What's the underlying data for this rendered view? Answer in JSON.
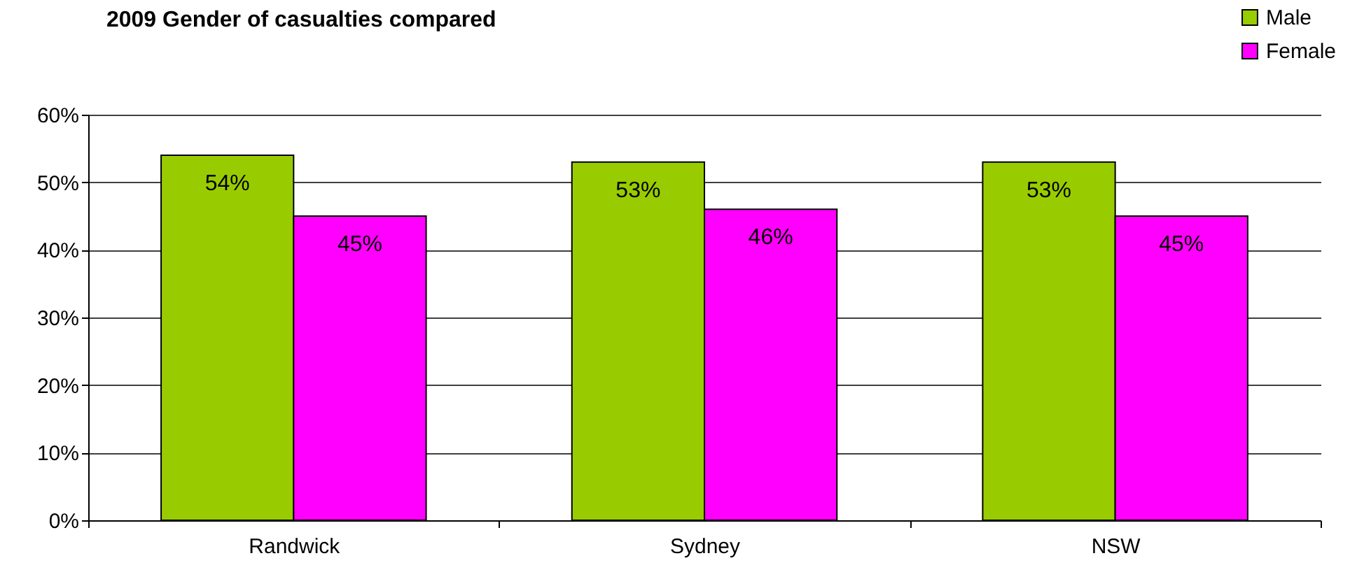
{
  "chart_data": {
    "type": "bar",
    "title": "2009 Gender of casualties compared",
    "categories": [
      "Randwick",
      "Sydney",
      "NSW"
    ],
    "series": [
      {
        "name": "Male",
        "color": "#99cc00",
        "values": [
          54,
          53,
          53
        ],
        "value_labels": [
          "54%",
          "53%",
          "53%"
        ]
      },
      {
        "name": "Female",
        "color": "#ff00ff",
        "values": [
          45,
          46,
          45
        ],
        "value_labels": [
          "45%",
          "46%",
          "45%"
        ]
      }
    ],
    "ylim": [
      0,
      60
    ],
    "yticks": [
      {
        "value": 0,
        "label": "0%"
      },
      {
        "value": 10,
        "label": "10%"
      },
      {
        "value": 20,
        "label": "20%"
      },
      {
        "value": 30,
        "label": "30%"
      },
      {
        "value": 40,
        "label": "40%"
      },
      {
        "value": 50,
        "label": "50%"
      },
      {
        "value": 60,
        "label": "60%"
      }
    ],
    "grid": "y",
    "legend": "top right"
  }
}
